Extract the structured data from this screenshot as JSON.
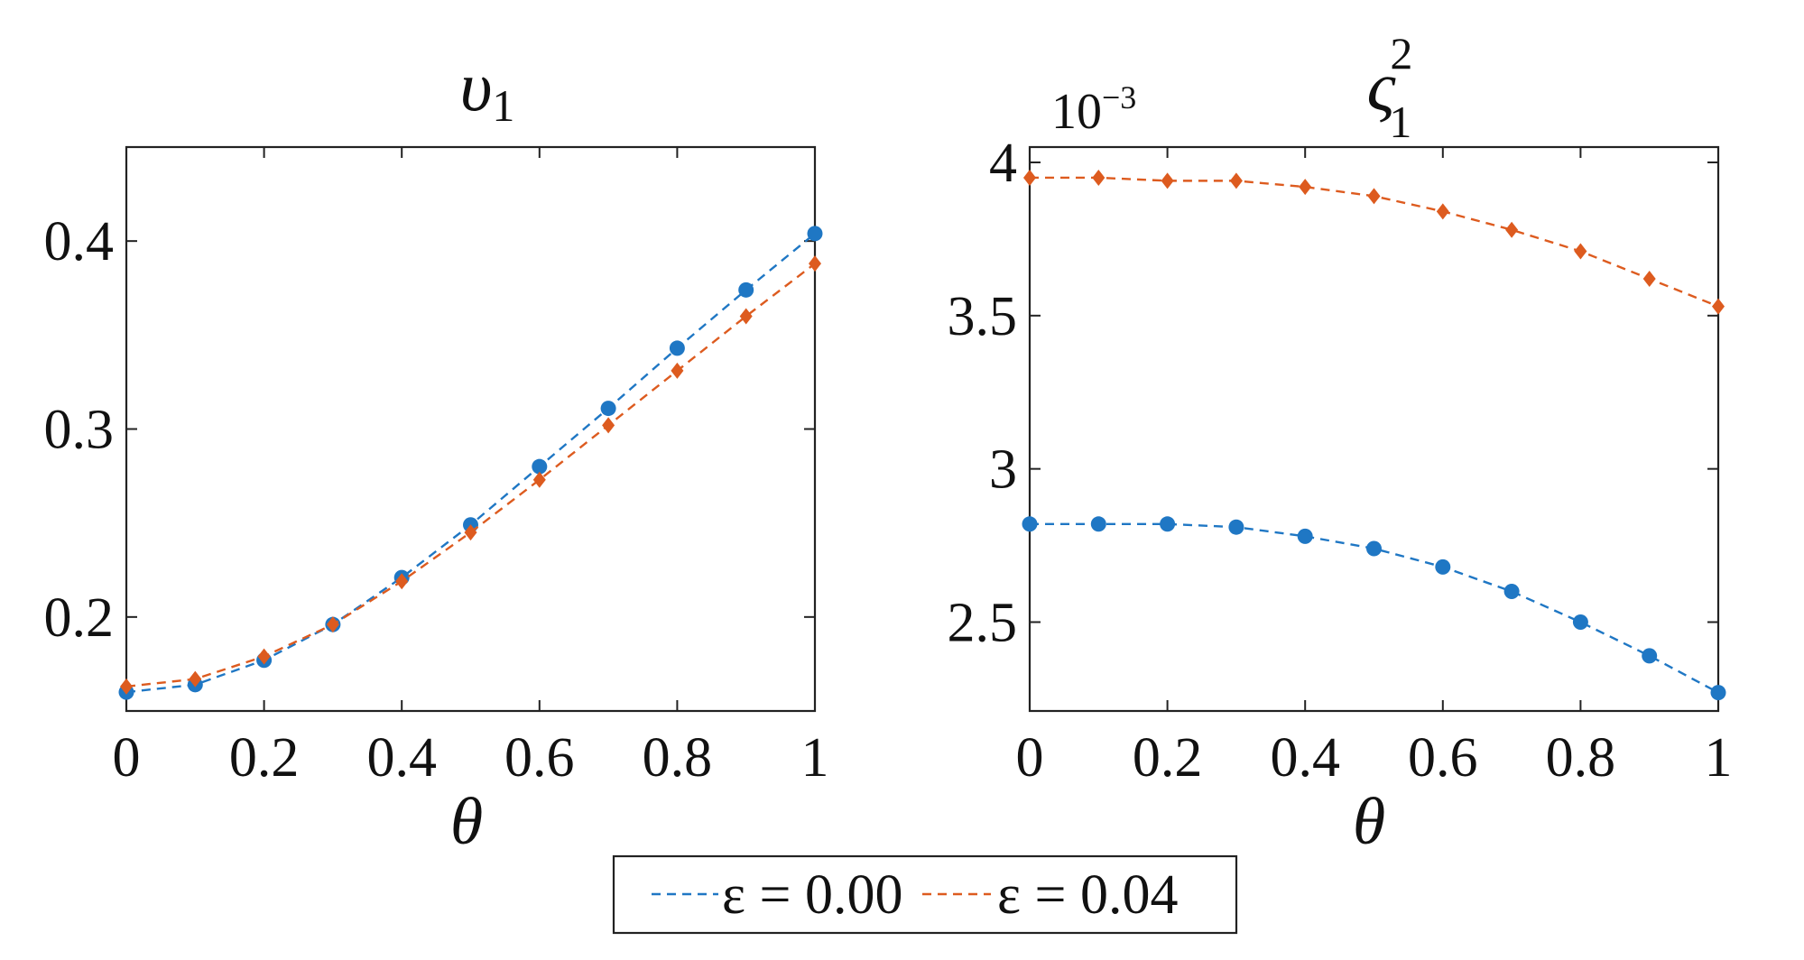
{
  "colors": {
    "series1": "#1f77c4",
    "series2": "#dd5b1f",
    "axis": "#222222"
  },
  "legend": {
    "entries": [
      {
        "label": "ε = 0.00",
        "marker": "circle",
        "color": "#1f77c4"
      },
      {
        "label": "ε = 0.04",
        "marker": "diamond",
        "color": "#dd5b1f"
      }
    ]
  },
  "chart_data": [
    {
      "type": "line",
      "title_main": "υ",
      "title_sub": "1",
      "xlabel": "θ",
      "ylabel": "",
      "xlim": [
        0,
        1
      ],
      "ylim": [
        0.15,
        0.45
      ],
      "xticks": [
        0,
        0.2,
        0.4,
        0.6,
        0.8,
        1
      ],
      "xtick_labels": [
        "0",
        "0.2",
        "0.4",
        "0.6",
        "0.8",
        "1"
      ],
      "yticks": [
        0.2,
        0.3,
        0.4
      ],
      "ytick_labels": [
        "0.2",
        "0.3",
        "0.4"
      ],
      "x": [
        0,
        0.1,
        0.2,
        0.3,
        0.4,
        0.5,
        0.6,
        0.7,
        0.8,
        0.9,
        1.0
      ],
      "series": [
        {
          "name": "ε = 0.00",
          "marker": "circle",
          "color": "#1f77c4",
          "values": [
            0.16,
            0.164,
            0.177,
            0.196,
            0.221,
            0.249,
            0.28,
            0.311,
            0.343,
            0.374,
            0.404
          ]
        },
        {
          "name": "ε = 0.04",
          "marker": "diamond",
          "color": "#dd5b1f",
          "values": [
            0.163,
            0.167,
            0.179,
            0.196,
            0.219,
            0.245,
            0.273,
            0.302,
            0.331,
            0.36,
            0.388
          ]
        }
      ]
    },
    {
      "type": "line",
      "title_main": "ς",
      "title_sub": "1",
      "title_sup": "2",
      "multiplier_base": "10",
      "multiplier_exp": "−3",
      "xlabel": "θ",
      "ylabel": "",
      "xlim": [
        0,
        1
      ],
      "ylim": [
        2.21,
        4.05
      ],
      "xticks": [
        0,
        0.2,
        0.4,
        0.6,
        0.8,
        1
      ],
      "xtick_labels": [
        "0",
        "0.2",
        "0.4",
        "0.6",
        "0.8",
        "1"
      ],
      "yticks": [
        2.5,
        3,
        3.5,
        4
      ],
      "ytick_labels": [
        "2.5",
        "3",
        "3.5",
        "4"
      ],
      "x": [
        0,
        0.1,
        0.2,
        0.3,
        0.4,
        0.5,
        0.6,
        0.7,
        0.8,
        0.9,
        1.0
      ],
      "series": [
        {
          "name": "ε = 0.00",
          "marker": "circle",
          "color": "#1f77c4",
          "values": [
            2.82,
            2.82,
            2.82,
            2.81,
            2.78,
            2.74,
            2.68,
            2.6,
            2.5,
            2.39,
            2.27
          ]
        },
        {
          "name": "ε = 0.04",
          "marker": "diamond",
          "color": "#dd5b1f",
          "values": [
            3.95,
            3.95,
            3.94,
            3.94,
            3.92,
            3.89,
            3.84,
            3.78,
            3.71,
            3.62,
            3.53
          ]
        }
      ]
    }
  ]
}
